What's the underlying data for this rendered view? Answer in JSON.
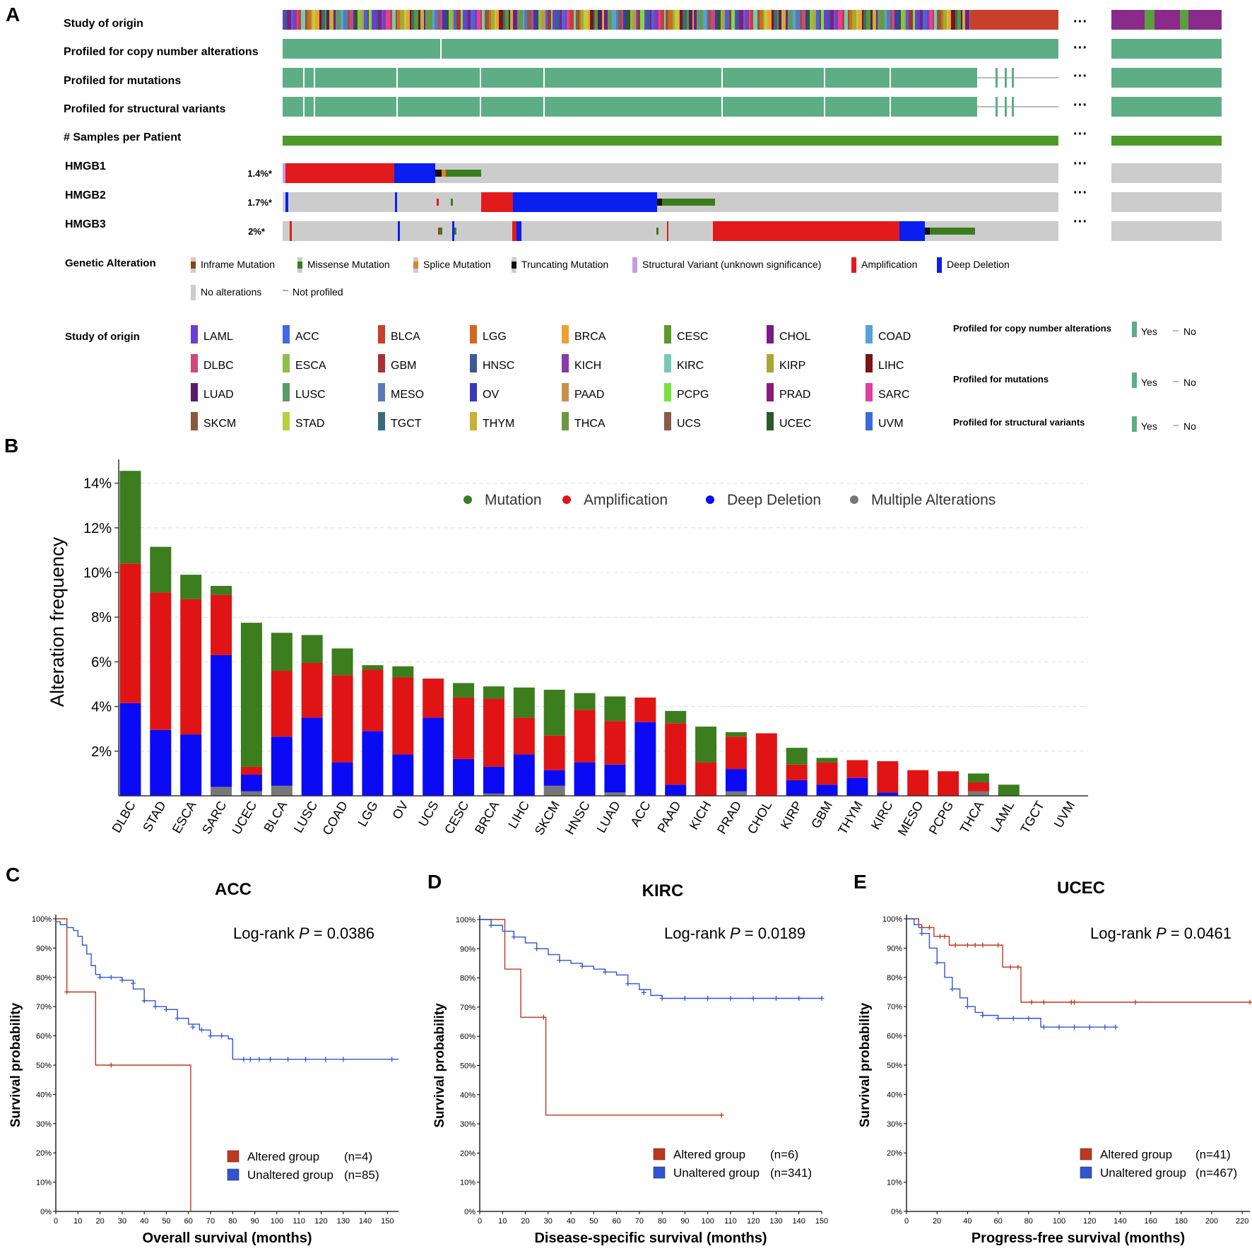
{
  "panel_labels": {
    "a": "A",
    "b": "B",
    "c": "C",
    "d": "D",
    "e": "E"
  },
  "oncoprint": {
    "track_labels": [
      "Study of origin",
      "Profiled for copy number alterations",
      "Profiled for mutations",
      "Profiled for structural variants",
      "# Samples per Patient"
    ],
    "genes": [
      {
        "name": "HMGB1",
        "pct": "1.4%*"
      },
      {
        "name": "HMGB2",
        "pct": "1.7%*"
      },
      {
        "name": "HMGB3",
        "pct": "2%*"
      }
    ],
    "ellipsis": "···",
    "genetic_alteration": {
      "title": "Genetic Alteration",
      "items": [
        {
          "label": "Inframe Mutation",
          "color": "#8B4513"
        },
        {
          "label": "Missense Mutation",
          "color": "#3A7D1E"
        },
        {
          "label": "Splice Mutation",
          "color": "#E08030"
        },
        {
          "label": "Truncating Mutation",
          "color": "#111111"
        },
        {
          "label": "Structural Variant (unknown significance)",
          "color": "#C89BE6"
        },
        {
          "label": "Amplification",
          "color": "#E31A1C"
        },
        {
          "label": "Deep Deletion",
          "color": "#0A1EF0"
        },
        {
          "label": "No alterations",
          "color": "#CCCCCC"
        },
        {
          "label": "Not profiled",
          "color": "#AAAAAA"
        }
      ]
    },
    "study_legend": {
      "title": "Study of origin",
      "items": [
        {
          "label": "LAML",
          "color": "#6A3FD6"
        },
        {
          "label": "ACC",
          "color": "#4169E1"
        },
        {
          "label": "BLCA",
          "color": "#C8402A"
        },
        {
          "label": "LGG",
          "color": "#D2691E"
        },
        {
          "label": "BRCA",
          "color": "#F0A030"
        },
        {
          "label": "CESC",
          "color": "#5A9A2A"
        },
        {
          "label": "CHOL",
          "color": "#7A1A8A"
        },
        {
          "label": "COAD",
          "color": "#5AA0D8"
        },
        {
          "label": "DLBC",
          "color": "#D04878"
        },
        {
          "label": "ESCA",
          "color": "#8CC048"
        },
        {
          "label": "GBM",
          "color": "#A83232"
        },
        {
          "label": "HNSC",
          "color": "#3A5A9A"
        },
        {
          "label": "KICH",
          "color": "#8A3AA8"
        },
        {
          "label": "KIRC",
          "color": "#78C8B8"
        },
        {
          "label": "KIRP",
          "color": "#A8A830"
        },
        {
          "label": "LIHC",
          "color": "#7A1418"
        },
        {
          "label": "LUAD",
          "color": "#5A1A6A"
        },
        {
          "label": "LUSC",
          "color": "#5A9A6A"
        },
        {
          "label": "MESO",
          "color": "#5A7AB8"
        },
        {
          "label": "OV",
          "color": "#3A3AB8"
        },
        {
          "label": "PAAD",
          "color": "#C8904A"
        },
        {
          "label": "PCPG",
          "color": "#7AE040"
        },
        {
          "label": "PRAD",
          "color": "#8A1A7A"
        },
        {
          "label": "SARC",
          "color": "#E040A0"
        },
        {
          "label": "SKCM",
          "color": "#8A5A3A"
        },
        {
          "label": "STAD",
          "color": "#B8D040"
        },
        {
          "label": "TGCT",
          "color": "#3A6A7A"
        },
        {
          "label": "THYM",
          "color": "#C8B030"
        },
        {
          "label": "THCA",
          "color": "#6A9A3A"
        },
        {
          "label": "UCS",
          "color": "#8A5A4A"
        },
        {
          "label": "UCEC",
          "color": "#2A5A2A"
        },
        {
          "label": "UVM",
          "color": "#3A6AD8"
        }
      ]
    },
    "profiled_legend": [
      {
        "label": "Profiled for copy number alterations",
        "yes": "Yes",
        "no": "No"
      },
      {
        "label": "Profiled for mutations",
        "yes": "Yes",
        "no": "No"
      },
      {
        "label": "Profiled for structural variants",
        "yes": "Yes",
        "no": "No"
      }
    ]
  },
  "chart_data": [
    {
      "panel": "B",
      "type": "bar",
      "stacked": true,
      "ylabel": "Alteration frequency",
      "ylim": [
        0,
        15
      ],
      "yticks": [
        "2%",
        "4%",
        "6%",
        "8%",
        "10%",
        "12%",
        "14%"
      ],
      "grid": true,
      "legend_position": "top",
      "categories": [
        "DLBC",
        "STAD",
        "ESCA",
        "SARC",
        "UCEC",
        "BLCA",
        "LUSC",
        "COAD",
        "LGG",
        "OV",
        "UCS",
        "CESC",
        "BRCA",
        "LIHC",
        "SKCM",
        "HNSC",
        "LUAD",
        "ACC",
        "PAAD",
        "KICH",
        "PRAD",
        "CHOL",
        "KIRP",
        "GBM",
        "THYM",
        "KIRC",
        "MESO",
        "PCPG",
        "THCA",
        "LAML",
        "TGCT",
        "UVM"
      ],
      "series": [
        {
          "name": "Multiple Alterations",
          "color": "#777777",
          "values": [
            0,
            0,
            0,
            0.4,
            0.2,
            0.45,
            0,
            0,
            0,
            0,
            0,
            0,
            0.1,
            0,
            0.45,
            0,
            0.15,
            0,
            0,
            0,
            0.2,
            0,
            0,
            0,
            0,
            0,
            0,
            0,
            0.2,
            0,
            0,
            0
          ]
        },
        {
          "name": "Deep Deletion",
          "color": "#0A0AF5",
          "values": [
            4.15,
            2.95,
            2.75,
            5.9,
            0.75,
            2.2,
            3.5,
            1.5,
            2.9,
            1.85,
            3.5,
            1.65,
            1.2,
            1.85,
            0.7,
            1.5,
            1.25,
            3.3,
            0.5,
            0,
            1.0,
            0,
            0.7,
            0.5,
            0.8,
            0.15,
            0,
            0,
            0,
            0,
            0,
            0
          ]
        },
        {
          "name": "Amplification",
          "color": "#E01414",
          "values": [
            6.25,
            6.15,
            6.05,
            2.7,
            0.35,
            2.95,
            2.45,
            3.9,
            2.75,
            3.45,
            1.75,
            2.75,
            3.05,
            1.65,
            1.55,
            2.35,
            1.95,
            1.1,
            2.75,
            1.5,
            1.45,
            2.8,
            0.7,
            1.0,
            0.8,
            1.4,
            1.15,
            1.1,
            0.4,
            0,
            0,
            0
          ]
        },
        {
          "name": "Mutation",
          "color": "#3C7D1E",
          "values": [
            4.15,
            2.05,
            1.1,
            0.4,
            6.45,
            1.7,
            1.25,
            1.2,
            0.2,
            0.5,
            0,
            0.65,
            0.55,
            1.35,
            2.05,
            0.75,
            1.1,
            0,
            0.55,
            1.6,
            0.2,
            0,
            0.75,
            0.2,
            0,
            0,
            0,
            0,
            0.4,
            0.5,
            0,
            0
          ]
        }
      ],
      "legend_order": [
        "Mutation",
        "Amplification",
        "Deep Deletion",
        "Multiple Alterations"
      ]
    },
    {
      "panel": "C",
      "type": "line",
      "subtype": "kaplan-meier",
      "title": "ACC",
      "xlabel": "Overall survival (months)",
      "ylabel": "Survival probability",
      "xlim": [
        0,
        155
      ],
      "xticks": [
        0,
        10,
        20,
        30,
        40,
        50,
        60,
        70,
        80,
        90,
        100,
        110,
        120,
        130,
        140,
        150
      ],
      "ylim": [
        0,
        100
      ],
      "yticks": [
        "0%",
        "10%",
        "20%",
        "30%",
        "40%",
        "50%",
        "60%",
        "70%",
        "80%",
        "90%",
        "100%"
      ],
      "annotation": {
        "prefix": "Log-rank ",
        "p": "P",
        "value": " = 0.0386"
      },
      "series": [
        {
          "name": "Altered group",
          "n": "(n=4)",
          "color": "#C0371C",
          "x": [
            0,
            5,
            5,
            18,
            18,
            61,
            61
          ],
          "y": [
            100,
            100,
            75,
            75,
            50,
            50,
            0
          ],
          "censor_x": [
            5,
            25
          ],
          "censor_y": [
            75,
            50
          ]
        },
        {
          "name": "Unaltered group",
          "n": "(n=85)",
          "color": "#2F55D4",
          "x": [
            0,
            2,
            5,
            8,
            10,
            12,
            14,
            16,
            18,
            20,
            25,
            30,
            35,
            40,
            45,
            50,
            55,
            60,
            65,
            70,
            75,
            78,
            80,
            90,
            100,
            110,
            120,
            130,
            140,
            150,
            155
          ],
          "y": [
            99,
            98,
            97,
            96,
            94,
            91,
            88,
            84,
            81,
            80,
            80,
            79,
            76,
            72,
            70,
            69,
            66,
            64,
            62,
            60,
            60,
            59,
            52,
            52,
            52,
            52,
            52,
            52,
            52,
            52,
            52
          ],
          "censor_x": [
            20,
            25,
            30,
            35,
            40,
            45,
            50,
            55,
            62,
            66,
            70,
            75,
            85,
            88,
            92,
            97,
            105,
            113,
            122,
            130,
            152
          ],
          "censor_y": [
            80,
            80,
            79,
            78,
            72,
            70,
            69,
            66,
            63,
            62,
            60,
            60,
            52,
            52,
            52,
            52,
            52,
            52,
            52,
            52,
            52
          ]
        }
      ]
    },
    {
      "panel": "D",
      "type": "line",
      "subtype": "kaplan-meier",
      "title": "KIRC",
      "xlabel": "Disease-specific survival (months)",
      "ylabel": "Survival probability",
      "xlim": [
        0,
        150
      ],
      "xticks": [
        0,
        10,
        20,
        30,
        40,
        50,
        60,
        70,
        80,
        90,
        100,
        110,
        120,
        130,
        140,
        150
      ],
      "ylim": [
        0,
        100
      ],
      "yticks": [
        "0%",
        "10%",
        "20%",
        "30%",
        "40%",
        "50%",
        "60%",
        "70%",
        "80%",
        "90%",
        "100%"
      ],
      "annotation": {
        "prefix": "Log-rank ",
        "p": "P",
        "value": " = 0.0189"
      },
      "series": [
        {
          "name": "Altered group",
          "n": "(n=6)",
          "color": "#C0371C",
          "x": [
            0,
            11,
            11,
            18,
            18,
            29,
            29,
            106
          ],
          "y": [
            100,
            100,
            83,
            83,
            66.5,
            66.5,
            33,
            33
          ],
          "censor_x": [
            28,
            106
          ],
          "censor_y": [
            66.5,
            33
          ]
        },
        {
          "name": "Unaltered group",
          "n": "(n=341)",
          "color": "#2F55D4",
          "x": [
            0,
            5,
            10,
            15,
            20,
            25,
            30,
            35,
            40,
            45,
            50,
            55,
            60,
            65,
            70,
            75,
            80,
            90,
            100,
            110,
            120,
            130,
            140,
            150
          ],
          "y": [
            100,
            98,
            96,
            94,
            92,
            90,
            88,
            86,
            85,
            84,
            83,
            82,
            81,
            78,
            76,
            74,
            73,
            73,
            73,
            73,
            73,
            73,
            73,
            73
          ],
          "censor_x": [
            5,
            15,
            25,
            35,
            45,
            55,
            65,
            72,
            80,
            90,
            100,
            110,
            120,
            130,
            140,
            150
          ],
          "censor_y": [
            98,
            94,
            90,
            86,
            84,
            82,
            78,
            75,
            73,
            73,
            73,
            73,
            73,
            73,
            73,
            73
          ]
        }
      ]
    },
    {
      "panel": "E",
      "type": "line",
      "subtype": "kaplan-meier",
      "title": "UCEC",
      "xlabel": "Progress-free survival (months)",
      "ylabel": "Survival probability",
      "xlim": [
        0,
        225
      ],
      "xticks": [
        0,
        20,
        40,
        60,
        80,
        100,
        120,
        140,
        160,
        180,
        200,
        220
      ],
      "ylim": [
        0,
        100
      ],
      "yticks": [
        "0%",
        "10%",
        "20%",
        "30%",
        "40%",
        "50%",
        "60%",
        "70%",
        "80%",
        "90%",
        "100%"
      ],
      "annotation": {
        "prefix": "Log-rank ",
        "p": "P",
        "value": " = 0.0461"
      },
      "series": [
        {
          "name": "Altered group",
          "n": "(n=41)",
          "color": "#C0371C",
          "x": [
            0,
            8,
            8,
            18,
            18,
            28,
            28,
            63,
            63,
            75,
            75,
            225
          ],
          "y": [
            100,
            100,
            97,
            97,
            94,
            94,
            91,
            91,
            83.5,
            83.5,
            71.5,
            71.5
          ],
          "censor_x": [
            10,
            15,
            22,
            25,
            32,
            40,
            45,
            50,
            60,
            68,
            73,
            82,
            90,
            108,
            110,
            150,
            225
          ],
          "censor_y": [
            97,
            97,
            94,
            94,
            91,
            91,
            91,
            91,
            91,
            83.5,
            83.5,
            71.5,
            71.5,
            71.5,
            71.5,
            71.5,
            71.5
          ]
        },
        {
          "name": "Unaltered group",
          "n": "(n=467)",
          "color": "#2F55D4",
          "x": [
            0,
            5,
            10,
            15,
            20,
            25,
            30,
            35,
            40,
            45,
            50,
            55,
            60,
            70,
            80,
            88,
            88,
            100,
            110,
            120,
            130,
            137
          ],
          "y": [
            100,
            98,
            95,
            90,
            85,
            80,
            76,
            73,
            70,
            68,
            67,
            67,
            66,
            66,
            66,
            65,
            63,
            63,
            63,
            63,
            63,
            63
          ],
          "censor_x": [
            10,
            20,
            30,
            40,
            50,
            60,
            70,
            80,
            90,
            100,
            110,
            120,
            130,
            137
          ],
          "censor_y": [
            95,
            85,
            76,
            70,
            67,
            66,
            66,
            66,
            63,
            63,
            63,
            63,
            63,
            63
          ]
        }
      ]
    }
  ]
}
